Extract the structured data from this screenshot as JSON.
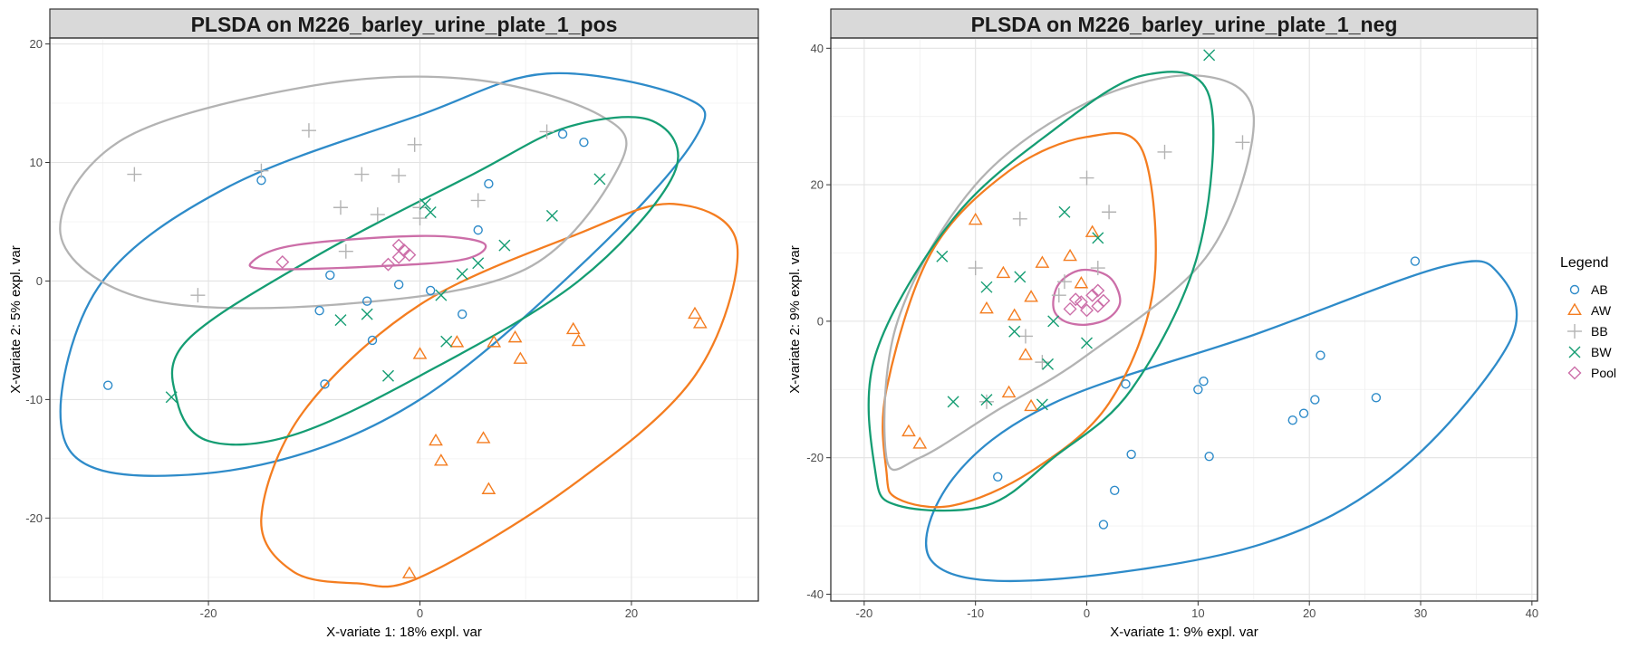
{
  "legend": {
    "title": "Legend",
    "entries": [
      {
        "name": "AB",
        "color": "#2e8bc9",
        "shape": "circle"
      },
      {
        "name": "AW",
        "color": "#f47d20",
        "shape": "triangle"
      },
      {
        "name": "BB",
        "color": "#b3b3b3",
        "shape": "plus"
      },
      {
        "name": "BW",
        "color": "#159d73",
        "shape": "cross"
      },
      {
        "name": "Pool",
        "color": "#cc6ea8",
        "shape": "diamond"
      }
    ]
  },
  "chart_data": [
    {
      "type": "scatter",
      "title": "PLSDA on M226_barley_urine_plate_1_pos",
      "xlabel": "X-variate 1: 18% expl. var",
      "ylabel": "X-variate 2: 5% expl. var",
      "xlim": [
        -35,
        32
      ],
      "ylim": [
        -27,
        20.5
      ],
      "xticks": [
        -20,
        0,
        20
      ],
      "yticks": [
        -20,
        -10,
        0,
        10,
        20
      ],
      "grid": true,
      "series": [
        {
          "name": "AB",
          "points": [
            [
              -29.5,
              -8.8
            ],
            [
              -15,
              8.5
            ],
            [
              -9,
              -8.7
            ],
            [
              -9.5,
              -2.5
            ],
            [
              -8.5,
              0.5
            ],
            [
              -5,
              -1.7
            ],
            [
              -4.5,
              -5
            ],
            [
              -2,
              -0.3
            ],
            [
              1,
              -0.8
            ],
            [
              4,
              -2.8
            ],
            [
              5.5,
              4.3
            ],
            [
              6.5,
              8.2
            ],
            [
              13.5,
              12.4
            ],
            [
              15.5,
              11.7
            ]
          ]
        },
        {
          "name": "AW",
          "points": [
            [
              -1,
              -24.7
            ],
            [
              0,
              -6.2
            ],
            [
              1.5,
              -13.5
            ],
            [
              2,
              -15.2
            ],
            [
              3.5,
              -5.2
            ],
            [
              6,
              -13.3
            ],
            [
              6.5,
              -17.6
            ],
            [
              7,
              -5.2
            ],
            [
              9,
              -4.8
            ],
            [
              9.5,
              -6.6
            ],
            [
              14.5,
              -4.1
            ],
            [
              15,
              -5.1
            ],
            [
              26,
              -2.8
            ],
            [
              26.5,
              -3.6
            ]
          ]
        },
        {
          "name": "BB",
          "points": [
            [
              -27,
              9
            ],
            [
              -21,
              -1.2
            ],
            [
              -15,
              9.3
            ],
            [
              -10.5,
              12.7
            ],
            [
              -7.5,
              6.2
            ],
            [
              -7,
              2.5
            ],
            [
              -5.5,
              9
            ],
            [
              -4,
              5.6
            ],
            [
              -2,
              8.9
            ],
            [
              -0.5,
              11.5
            ],
            [
              0,
              6.2
            ],
            [
              0,
              5.3
            ],
            [
              5.5,
              6.8
            ],
            [
              12,
              12.6
            ]
          ]
        },
        {
          "name": "BW",
          "points": [
            [
              -23.5,
              -9.8
            ],
            [
              -7.5,
              -3.3
            ],
            [
              -5,
              -2.8
            ],
            [
              -3,
              -8
            ],
            [
              0.5,
              6.5
            ],
            [
              1,
              5.8
            ],
            [
              2,
              -1.2
            ],
            [
              2.5,
              -5.1
            ],
            [
              4,
              0.6
            ],
            [
              5.5,
              1.5
            ],
            [
              8,
              3
            ],
            [
              12.5,
              5.5
            ],
            [
              17,
              8.6
            ]
          ]
        },
        {
          "name": "Pool",
          "points": [
            [
              -13,
              1.6
            ],
            [
              -3,
              1.4
            ],
            [
              -2,
              2
            ],
            [
              -1.5,
              2.6
            ],
            [
              -1,
              2.2
            ],
            [
              -2,
              3
            ]
          ]
        }
      ],
      "ellipses": [
        {
          "name": "AB",
          "points": [
            [
              -30,
              -16
            ],
            [
              -34,
              -11
            ],
            [
              -30,
              0
            ],
            [
              -18,
              8
            ],
            [
              0,
              14
            ],
            [
              12,
              17.5
            ],
            [
              25,
              15.5
            ],
            [
              26,
              12
            ],
            [
              16,
              2
            ],
            [
              0,
              -10
            ],
            [
              -15,
              -15.5
            ]
          ]
        },
        {
          "name": "AW",
          "points": [
            [
              -15,
              -20
            ],
            [
              -11,
              -11
            ],
            [
              0,
              -2
            ],
            [
              15,
              4
            ],
            [
              24,
              6.5
            ],
            [
              30,
              3
            ],
            [
              26,
              -8
            ],
            [
              14,
              -17.5
            ],
            [
              0,
              -25
            ],
            [
              -6,
              -25.5
            ],
            [
              -12,
              -24.5
            ]
          ]
        },
        {
          "name": "BB",
          "points": [
            [
              -34,
              4
            ],
            [
              -28,
              12
            ],
            [
              -10,
              16.5
            ],
            [
              5,
              17
            ],
            [
              17,
              14
            ],
            [
              19,
              10
            ],
            [
              10,
              1
            ],
            [
              -8,
              -2
            ],
            [
              -26,
              -1.5
            ]
          ]
        },
        {
          "name": "BW",
          "points": [
            [
              -23,
              -10
            ],
            [
              -22,
              -5
            ],
            [
              -10,
              2
            ],
            [
              5,
              9
            ],
            [
              14,
              13
            ],
            [
              22,
              13.5
            ],
            [
              24,
              9
            ],
            [
              15,
              0
            ],
            [
              0,
              -8
            ],
            [
              -12,
              -13
            ],
            [
              -20,
              -13.5
            ]
          ]
        },
        {
          "name": "Pool",
          "points": [
            [
              -16,
              1.5
            ],
            [
              -12,
              3
            ],
            [
              0,
              3.8
            ],
            [
              6,
              3.2
            ],
            [
              4,
              1.8
            ],
            [
              -5,
              1.2
            ],
            [
              -14,
              1
            ]
          ]
        }
      ]
    },
    {
      "type": "scatter",
      "title": "PLSDA on M226_barley_urine_plate_1_neg",
      "xlabel": "X-variate 1: 9% expl. var",
      "ylabel": "X-variate 2: 9% expl. var",
      "xlim": [
        -23,
        40.5
      ],
      "ylim": [
        -41,
        41.5
      ],
      "xticks": [
        -20,
        -10,
        0,
        10,
        20,
        30,
        40
      ],
      "yticks": [
        -40,
        -20,
        0,
        20,
        40
      ],
      "grid": true,
      "series": [
        {
          "name": "AB",
          "points": [
            [
              -8,
              -22.8
            ],
            [
              1.5,
              -29.8
            ],
            [
              2.5,
              -24.8
            ],
            [
              3.5,
              -9.2
            ],
            [
              4,
              -19.5
            ],
            [
              10,
              -10
            ],
            [
              10.5,
              -8.8
            ],
            [
              11,
              -19.8
            ],
            [
              18.5,
              -14.5
            ],
            [
              19.5,
              -13.5
            ],
            [
              20.5,
              -11.5
            ],
            [
              21,
              -5
            ],
            [
              26,
              -11.2
            ],
            [
              29.5,
              8.8
            ]
          ]
        },
        {
          "name": "AW",
          "points": [
            [
              -16,
              -16.2
            ],
            [
              -15,
              -18
            ],
            [
              -10,
              14.8
            ],
            [
              -9,
              1.8
            ],
            [
              -7.5,
              7
            ],
            [
              -7,
              -10.5
            ],
            [
              -6.5,
              0.8
            ],
            [
              -5.5,
              -5
            ],
            [
              -5,
              3.5
            ],
            [
              -5,
              -12.5
            ],
            [
              -4,
              8.5
            ],
            [
              -1.5,
              9.5
            ],
            [
              -0.5,
              5.5
            ],
            [
              0.5,
              13
            ]
          ]
        },
        {
          "name": "BB",
          "points": [
            [
              -10,
              7.8
            ],
            [
              -9,
              -11.8
            ],
            [
              -6,
              15
            ],
            [
              -5.5,
              -2.2
            ],
            [
              -4,
              -6
            ],
            [
              -2.5,
              3.8
            ],
            [
              -2,
              5.8
            ],
            [
              0,
              21
            ],
            [
              1,
              7.8
            ],
            [
              2,
              16
            ],
            [
              7,
              24.8
            ],
            [
              14,
              26.2
            ]
          ]
        },
        {
          "name": "BW",
          "points": [
            [
              -13,
              9.5
            ],
            [
              -12,
              -11.8
            ],
            [
              -9,
              -11.5
            ],
            [
              -9,
              5
            ],
            [
              -6,
              6.5
            ],
            [
              -6.5,
              -1.5
            ],
            [
              -4,
              -12.2
            ],
            [
              -3.5,
              -6.3
            ],
            [
              -3,
              0
            ],
            [
              -2,
              16
            ],
            [
              0,
              -3.2
            ],
            [
              1,
              12.2
            ],
            [
              11,
              39
            ]
          ]
        },
        {
          "name": "Pool",
          "points": [
            [
              -1.5,
              1.8
            ],
            [
              -0.5,
              2.8
            ],
            [
              0,
              1.6
            ],
            [
              0.5,
              3.8
            ],
            [
              1,
              4.5
            ],
            [
              1,
              2.2
            ],
            [
              -1,
              3.2
            ],
            [
              1.5,
              3
            ]
          ]
        }
      ],
      "ellipses": [
        {
          "name": "AB",
          "points": [
            [
              -14,
              -35
            ],
            [
              -12,
              -23
            ],
            [
              -3,
              -12
            ],
            [
              15,
              -2
            ],
            [
              32,
              8
            ],
            [
              37,
              7
            ],
            [
              38,
              -3
            ],
            [
              28,
              -22
            ],
            [
              15,
              -33
            ],
            [
              -5,
              -38
            ]
          ]
        },
        {
          "name": "AW",
          "points": [
            [
              -18,
              -22
            ],
            [
              -18,
              -10
            ],
            [
              -14,
              10
            ],
            [
              -7,
              22
            ],
            [
              0,
              27
            ],
            [
              5,
              25
            ],
            [
              6,
              5
            ],
            [
              2,
              -12
            ],
            [
              -5,
              -22
            ],
            [
              -12,
              -27
            ],
            [
              -17,
              -26
            ]
          ]
        },
        {
          "name": "BB",
          "points": [
            [
              -18,
              -20
            ],
            [
              -17,
              0
            ],
            [
              -10,
              20
            ],
            [
              0,
              32
            ],
            [
              10,
              36
            ],
            [
              15,
              30
            ],
            [
              11,
              10
            ],
            [
              0,
              -5
            ],
            [
              -8,
              -13
            ],
            [
              -15,
              -20
            ]
          ]
        },
        {
          "name": "BW",
          "points": [
            [
              -19,
              -22
            ],
            [
              -19,
              -5
            ],
            [
              -12,
              15
            ],
            [
              -3,
              28
            ],
            [
              5,
              36
            ],
            [
              11,
              33
            ],
            [
              10,
              10
            ],
            [
              4,
              -10
            ],
            [
              -3,
              -20
            ],
            [
              -9,
              -27
            ],
            [
              -17,
              -27
            ]
          ]
        },
        {
          "name": "Pool",
          "points": [
            [
              -3,
              2
            ],
            [
              -2.5,
              5.5
            ],
            [
              -0.5,
              7.5
            ],
            [
              2,
              6.5
            ],
            [
              3,
              3
            ],
            [
              2,
              0.5
            ],
            [
              0,
              -0.5
            ],
            [
              -2,
              0
            ]
          ]
        }
      ]
    }
  ]
}
